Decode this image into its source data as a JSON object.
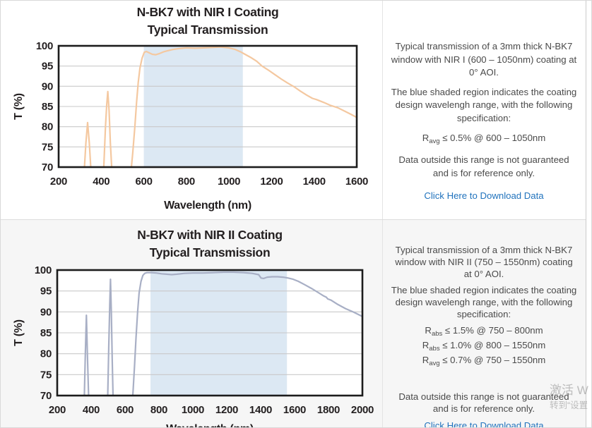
{
  "chart_data": [
    {
      "type": "line",
      "title_line1": "N-BK7 with NIR I Coating",
      "title_line2": "Typical Transmission",
      "xlabel": "Wavelength (nm)",
      "ylabel": "T (%)",
      "xlim": [
        200,
        1600
      ],
      "ylim": [
        70,
        100
      ],
      "xticks": [
        200,
        400,
        600,
        800,
        1000,
        1200,
        1400,
        1600
      ],
      "yticks": [
        70,
        75,
        80,
        85,
        90,
        95,
        100
      ],
      "grid": "horizontal",
      "legend": "none",
      "shaded_region": {
        "from": 600,
        "to": 1065,
        "color": "#dce8f3",
        "meaning": "coating design wavelength range"
      },
      "line_color": "#f4c8a0",
      "series": [
        {
          "name": "Transmission",
          "points": [
            [
              310,
              62
            ],
            [
              320,
              69
            ],
            [
              328,
              76
            ],
            [
              336,
              81
            ],
            [
              344,
              76
            ],
            [
              352,
              69
            ],
            [
              358,
              62
            ],
            [
              404,
              62
            ],
            [
              412,
              70
            ],
            [
              420,
              80
            ],
            [
              426,
              85.5
            ],
            [
              431,
              88.7
            ],
            [
              437,
              84
            ],
            [
              443,
              76
            ],
            [
              449,
              70
            ],
            [
              455,
              62
            ],
            [
              528,
              62
            ],
            [
              538,
              68
            ],
            [
              548,
              73.5
            ],
            [
              558,
              80
            ],
            [
              566,
              86
            ],
            [
              574,
              91
            ],
            [
              582,
              94.5
            ],
            [
              592,
              97
            ],
            [
              602,
              98.4
            ],
            [
              612,
              98.6
            ],
            [
              624,
              98.3
            ],
            [
              640,
              97.9
            ],
            [
              656,
              97.8
            ],
            [
              674,
              98.1
            ],
            [
              692,
              98.5
            ],
            [
              712,
              98.8
            ],
            [
              736,
              99.1
            ],
            [
              762,
              99.3
            ],
            [
              800,
              99.5
            ],
            [
              840,
              99.4
            ],
            [
              880,
              99.5
            ],
            [
              920,
              99.6
            ],
            [
              960,
              99.7
            ],
            [
              1000,
              99.5
            ],
            [
              1030,
              99.1
            ],
            [
              1055,
              98.5
            ],
            [
              1075,
              97.9
            ],
            [
              1100,
              97.2
            ],
            [
              1130,
              96.2
            ],
            [
              1155,
              95.0
            ],
            [
              1185,
              94.0
            ],
            [
              1215,
              92.9
            ],
            [
              1245,
              91.8
            ],
            [
              1275,
              90.8
            ],
            [
              1305,
              89.9
            ],
            [
              1335,
              88.8
            ],
            [
              1365,
              87.8
            ],
            [
              1392,
              87.0
            ],
            [
              1412,
              86.7
            ],
            [
              1445,
              86.0
            ],
            [
              1475,
              85.3
            ],
            [
              1510,
              84.7
            ],
            [
              1545,
              83.8
            ],
            [
              1575,
              83.0
            ],
            [
              1600,
              82.3
            ]
          ]
        }
      ]
    },
    {
      "type": "line",
      "title_line1": "N-BK7 with NIR II Coating",
      "title_line2": "Typical Transmission",
      "xlabel": "Wavelength (nm)",
      "ylabel": "T (%)",
      "xlim": [
        200,
        2000
      ],
      "ylim": [
        70,
        100
      ],
      "xticks": [
        200,
        400,
        600,
        800,
        1000,
        1200,
        1400,
        1600,
        1800,
        2000
      ],
      "yticks": [
        70,
        75,
        80,
        85,
        90,
        95,
        100
      ],
      "grid": "horizontal",
      "legend": "none",
      "shaded_region": {
        "from": 750,
        "to": 1555,
        "color": "#dce8f3",
        "meaning": "coating design wavelength range"
      },
      "line_color": "#a8afc5",
      "series": [
        {
          "name": "Transmission",
          "points": [
            [
              352,
              62
            ],
            [
              360,
              70
            ],
            [
              366,
              80
            ],
            [
              372,
              89.2
            ],
            [
              378,
              80
            ],
            [
              385,
              70
            ],
            [
              392,
              62
            ],
            [
              492,
              62
            ],
            [
              498,
              70
            ],
            [
              504,
              82
            ],
            [
              510,
              92
            ],
            [
              514,
              97.8
            ],
            [
              519,
              90
            ],
            [
              524,
              79
            ],
            [
              529,
              70
            ],
            [
              535,
              62
            ],
            [
              636,
              62
            ],
            [
              646,
              70
            ],
            [
              656,
              77
            ],
            [
              665,
              84
            ],
            [
              674,
              90
            ],
            [
              683,
              94.5
            ],
            [
              694,
              97.3
            ],
            [
              705,
              98.7
            ],
            [
              716,
              99.2
            ],
            [
              730,
              99.4
            ],
            [
              755,
              99.4
            ],
            [
              785,
              99.3
            ],
            [
              815,
              99.1
            ],
            [
              845,
              99.0
            ],
            [
              875,
              98.9
            ],
            [
              905,
              99.0
            ],
            [
              950,
              99.2
            ],
            [
              1000,
              99.3
            ],
            [
              1060,
              99.3
            ],
            [
              1120,
              99.4
            ],
            [
              1180,
              99.5
            ],
            [
              1240,
              99.5
            ],
            [
              1300,
              99.4
            ],
            [
              1350,
              99.2
            ],
            [
              1388,
              98.9
            ],
            [
              1402,
              98.1
            ],
            [
              1418,
              98.0
            ],
            [
              1438,
              98.3
            ],
            [
              1468,
              98.4
            ],
            [
              1500,
              98.4
            ],
            [
              1532,
              98.3
            ],
            [
              1562,
              98.1
            ],
            [
              1592,
              97.8
            ],
            [
              1622,
              97.3
            ],
            [
              1660,
              96.5
            ],
            [
              1700,
              95.6
            ],
            [
              1740,
              94.6
            ],
            [
              1772,
              93.8
            ],
            [
              1788,
              93.5
            ],
            [
              1795,
              93.1
            ],
            [
              1815,
              92.8
            ],
            [
              1850,
              91.9
            ],
            [
              1900,
              90.8
            ],
            [
              1950,
              89.9
            ],
            [
              2000,
              88.9
            ]
          ]
        }
      ]
    }
  ],
  "panels": [
    {
      "intro": "Typical transmission of a 3mm thick N-BK7 window with NIR I (600 – 1050nm) coating at 0° AOI.",
      "note": "The blue shaded region indicates the coating design wavelengh range, with the following specification:",
      "specs": [
        {
          "base": "R",
          "sub": "avg",
          "rest": "≤ 0.5% @ 600 – 1050nm"
        }
      ],
      "disclaimer": "Data outside this range is not guaranteed and is for reference only.",
      "link": "Click Here to Download Data"
    },
    {
      "intro": "Typical transmission of a 3mm thick N-BK7 window with NIR II (750 – 1550nm) coating at 0° AOI.",
      "note": "The blue shaded region indicates the coating design wavelengh range, with the following specification:",
      "specs": [
        {
          "base": "R",
          "sub": "abs",
          "rest": "≤ 1.5% @ 750 – 800nm"
        },
        {
          "base": "R",
          "sub": "abs",
          "rest": "≤ 1.0% @ 800 – 1550nm"
        },
        {
          "base": "R",
          "sub": "avg",
          "rest": "≤ 0.7% @ 750 – 1550nm"
        }
      ],
      "disclaimer": "Data outside this range is not guaranteed and is for reference only.",
      "link": "Click Here to Download Data"
    }
  ],
  "watermark": {
    "line1": "激活 W",
    "line2": "转到“设置"
  },
  "colors": {
    "nir1_curve": "#f4c8a0",
    "nir2_curve": "#a8afc5",
    "shaded_region": "#dce8f3",
    "link": "#2173bd",
    "gridline": "#c9c9c9",
    "plot_border": "#1c1c1c",
    "row_bottom_bg": "#f6f6f6"
  }
}
